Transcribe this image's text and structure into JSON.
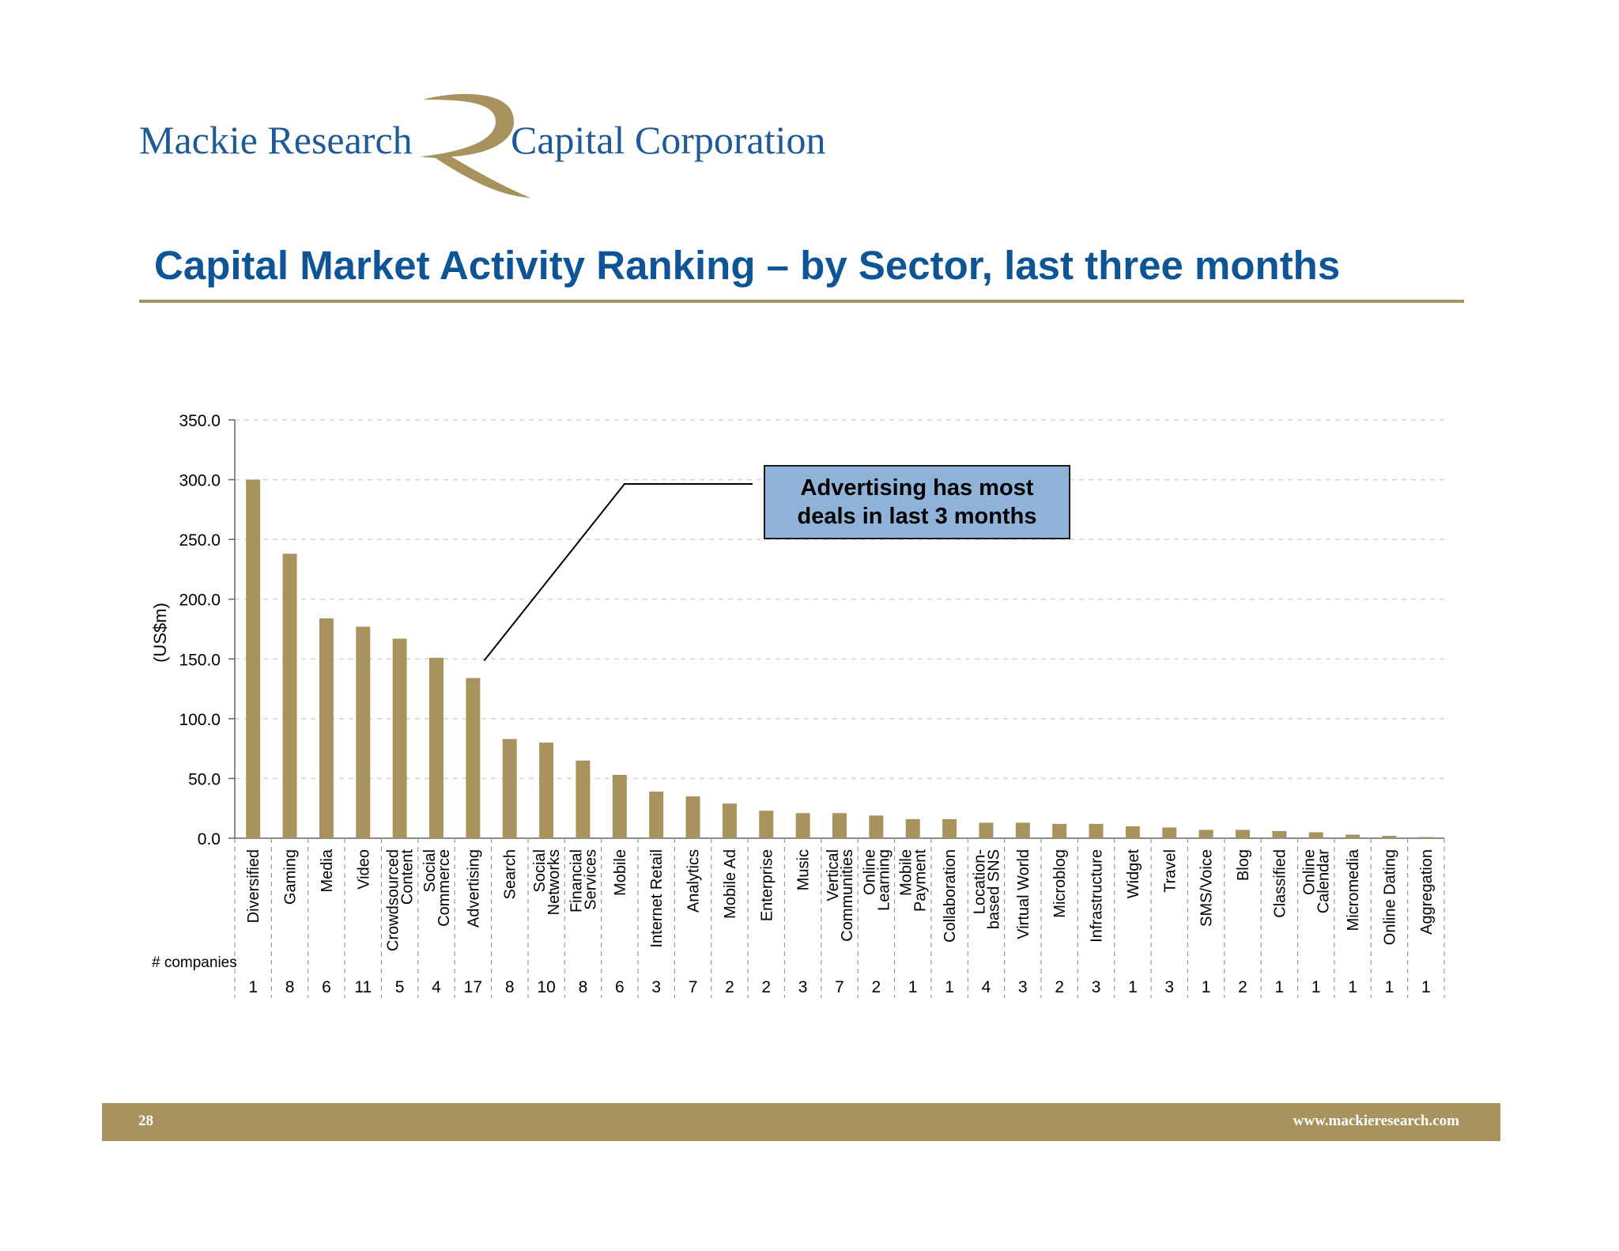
{
  "header": {
    "logo_left": "Mackie Research",
    "logo_right": "Capital Corporation",
    "logo_mark": "R"
  },
  "title": "Capital Market Activity Ranking – by Sector, last three months",
  "callout": "Advertising has most deals in last 3 months",
  "footer": {
    "page_number": "28",
    "website": "www.mackieresearch.com"
  },
  "colors": {
    "brand_blue": "#0e5596",
    "gold": "#a8935e",
    "bar": "#a8935e",
    "callout_fill": "#8fb3d8"
  },
  "chart_data": {
    "type": "bar",
    "title": "",
    "xlabel": "",
    "ylabel": "(US$m)",
    "ylim": [
      0,
      350
    ],
    "yticks": [
      "0.0",
      "50.0",
      "100.0",
      "150.0",
      "200.0",
      "250.0",
      "300.0",
      "350.0"
    ],
    "grid": true,
    "categories": [
      [
        "Diversified"
      ],
      [
        "Gaming"
      ],
      [
        "Media"
      ],
      [
        "Video"
      ],
      [
        "Crowdsourced",
        "Content"
      ],
      [
        "Social",
        "Commerce"
      ],
      [
        "Advertising"
      ],
      [
        "Search"
      ],
      [
        "Social",
        "Networks"
      ],
      [
        "Financial",
        "Services"
      ],
      [
        "Mobile"
      ],
      [
        "Internet Retail"
      ],
      [
        "Analytics"
      ],
      [
        "Mobile Ad"
      ],
      [
        "Enterprise"
      ],
      [
        "Music"
      ],
      [
        "Vertical",
        "Communities"
      ],
      [
        "Online",
        "Learning"
      ],
      [
        "Mobile",
        "Payment"
      ],
      [
        "Collaboration"
      ],
      [
        "Location-",
        "based SNS"
      ],
      [
        "Virtual World"
      ],
      [
        "Microblog"
      ],
      [
        "Infrastructure"
      ],
      [
        "Widget"
      ],
      [
        "Travel"
      ],
      [
        "SMS/Voice"
      ],
      [
        "Blog"
      ],
      [
        "Classified"
      ],
      [
        "Online",
        "Calendar"
      ],
      [
        "Micromedia"
      ],
      [
        "Online Dating"
      ],
      [
        "Aggregation"
      ]
    ],
    "values": [
      300,
      238,
      184,
      177,
      167,
      151,
      134,
      83,
      80,
      65,
      53,
      39,
      35,
      29,
      23,
      21,
      21,
      19,
      16,
      16,
      13,
      13,
      12,
      12,
      10,
      9,
      7,
      7,
      6,
      5,
      3,
      2,
      1
    ],
    "companies_label": "# companies",
    "companies": [
      "1",
      "8",
      "6",
      "11",
      "5",
      "4",
      "17",
      "8",
      "10",
      "8",
      "6",
      "3",
      "7",
      "2",
      "2",
      "3",
      "7",
      "2",
      "1",
      "1",
      "4",
      "3",
      "2",
      "3",
      "1",
      "3",
      "1",
      "2",
      "1",
      "1",
      "1",
      "1",
      "1"
    ]
  }
}
